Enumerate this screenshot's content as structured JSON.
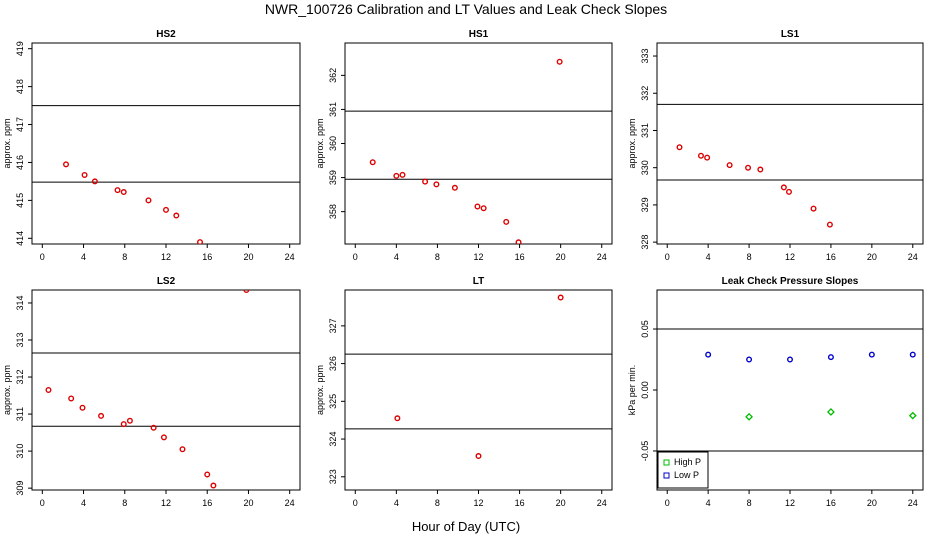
{
  "figure": {
    "title": "NWR_100726  Calibration and LT Values and Leak Check Slopes",
    "xlabel": "Hour of Day (UTC)"
  },
  "chart_data": [
    {
      "id": "hs2",
      "type": "scatter",
      "title": "HS2",
      "ylabel": "approx. ppm",
      "xlim": [
        -1,
        25
      ],
      "ylim": [
        413.85,
        419.15
      ],
      "xticks": [
        0,
        4,
        8,
        12,
        16,
        20,
        24
      ],
      "yticks": [
        414,
        415,
        416,
        417,
        418,
        419
      ],
      "hlines": [
        417.5,
        415.48
      ],
      "series": [
        {
          "color": "#dd0000",
          "marker": "circle",
          "x": [
            2.3,
            4.1,
            5.1,
            7.3,
            7.9,
            10.3,
            12.0,
            13.0,
            15.3
          ],
          "y": [
            415.95,
            415.67,
            415.5,
            415.27,
            415.22,
            415.0,
            414.75,
            414.6,
            413.9
          ]
        }
      ]
    },
    {
      "id": "hs1",
      "type": "scatter",
      "title": "HS1",
      "ylabel": "approx. ppm",
      "xlim": [
        -1,
        25
      ],
      "ylim": [
        357.05,
        362.95
      ],
      "xticks": [
        0,
        4,
        8,
        12,
        16,
        20,
        24
      ],
      "yticks": [
        358,
        359,
        360,
        361,
        362
      ],
      "hlines": [
        360.95,
        358.95
      ],
      "series": [
        {
          "color": "#dd0000",
          "marker": "circle",
          "x": [
            1.7,
            4.0,
            4.6,
            6.8,
            7.9,
            9.7,
            11.9,
            12.5,
            14.7,
            15.9,
            19.9
          ],
          "y": [
            359.45,
            359.05,
            359.08,
            358.88,
            358.8,
            358.7,
            358.15,
            358.1,
            357.7,
            357.1,
            362.4
          ]
        }
      ]
    },
    {
      "id": "ls1",
      "type": "scatter",
      "title": "LS1",
      "ylabel": "approx. ppm",
      "xlim": [
        -1,
        25
      ],
      "ylim": [
        327.95,
        333.35
      ],
      "xticks": [
        0,
        4,
        8,
        12,
        16,
        20,
        24
      ],
      "yticks": [
        328,
        329,
        330,
        331,
        332,
        333
      ],
      "hlines": [
        331.7,
        329.67
      ],
      "series": [
        {
          "color": "#dd0000",
          "marker": "circle",
          "x": [
            1.2,
            3.3,
            3.9,
            6.1,
            7.9,
            9.1,
            11.4,
            11.9,
            14.3,
            15.9
          ],
          "y": [
            330.55,
            330.32,
            330.27,
            330.07,
            330.0,
            329.95,
            329.47,
            329.35,
            328.9,
            328.47
          ]
        }
      ]
    },
    {
      "id": "ls2",
      "type": "scatter",
      "title": "LS2",
      "ylabel": "approx. ppm",
      "xlim": [
        -1,
        25
      ],
      "ylim": [
        308.95,
        314.35
      ],
      "xticks": [
        0,
        4,
        8,
        12,
        16,
        20,
        24
      ],
      "yticks": [
        309,
        310,
        311,
        312,
        313,
        314
      ],
      "hlines": [
        312.65,
        310.67
      ],
      "series": [
        {
          "color": "#dd0000",
          "marker": "circle",
          "x": [
            0.6,
            2.8,
            3.9,
            5.7,
            7.9,
            8.5,
            10.8,
            11.8,
            13.6,
            16.0,
            16.6,
            19.8
          ],
          "y": [
            311.65,
            311.42,
            311.17,
            310.95,
            310.73,
            310.82,
            310.63,
            310.37,
            310.05,
            309.37,
            309.07,
            314.35
          ]
        }
      ]
    },
    {
      "id": "lt",
      "type": "scatter",
      "title": "LT",
      "ylabel": "approx. ppm",
      "xlim": [
        -1,
        25
      ],
      "ylim": [
        322.65,
        327.95
      ],
      "xticks": [
        0,
        4,
        8,
        12,
        16,
        20,
        24
      ],
      "yticks": [
        323,
        324,
        325,
        326,
        327
      ],
      "hlines": [
        326.25,
        324.27
      ],
      "series": [
        {
          "color": "#dd0000",
          "marker": "circle",
          "x": [
            4.1,
            12.0,
            20.0
          ],
          "y": [
            324.55,
            323.55,
            327.75
          ]
        }
      ]
    },
    {
      "id": "leak",
      "type": "scatter",
      "title": "Leak Check Pressure Slopes",
      "ylabel": "kPa per min.",
      "xlim": [
        -1,
        25
      ],
      "ylim": [
        -0.082,
        0.082
      ],
      "xticks": [
        0,
        4,
        8,
        12,
        16,
        20,
        24
      ],
      "yticks": [
        -0.05,
        0.0,
        0.05
      ],
      "ytick_labels": [
        "-0.05",
        "0.00",
        "0.05"
      ],
      "hlines": [
        0.05,
        -0.05
      ],
      "legend": {
        "position": "bottom-left",
        "items": [
          {
            "label": "High P",
            "color": "#00bb00",
            "marker": "square"
          },
          {
            "label": "Low P",
            "color": "#0000cc",
            "marker": "square"
          }
        ]
      },
      "series": [
        {
          "name": "High P",
          "color": "#00bb00",
          "marker": "diamond",
          "x": [
            8,
            16,
            24
          ],
          "y": [
            -0.022,
            -0.018,
            -0.021
          ]
        },
        {
          "name": "Low P",
          "color": "#0000cc",
          "marker": "circle",
          "x": [
            4,
            8,
            12,
            16,
            20,
            24
          ],
          "y": [
            0.029,
            0.025,
            0.025,
            0.027,
            0.029,
            0.029
          ]
        }
      ]
    }
  ]
}
